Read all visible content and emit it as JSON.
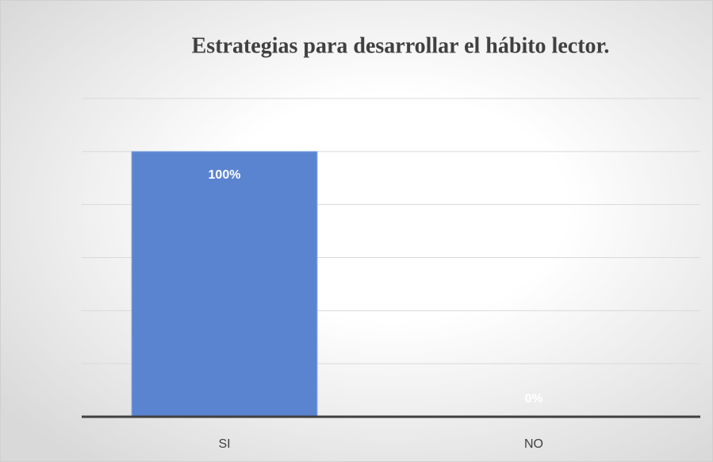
{
  "chart_data": {
    "type": "bar",
    "title": "Estrategias para desarrollar el hábito lector.",
    "categories": [
      "SI",
      "NO"
    ],
    "values": [
      100,
      0
    ],
    "value_labels": [
      "100%",
      "0%"
    ],
    "color": "#5b84d0",
    "ylim": [
      0,
      120
    ],
    "yticks": [
      0,
      20,
      40,
      60,
      80,
      100,
      120
    ],
    "grid": true
  }
}
